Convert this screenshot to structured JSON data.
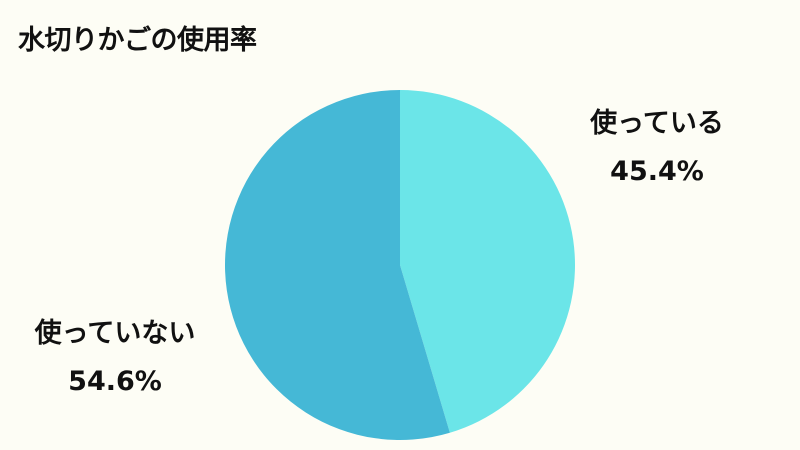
{
  "chart_data": {
    "type": "pie",
    "title": "水切りかごの使用率",
    "slices": [
      {
        "label": "使っている",
        "value": 45.4,
        "value_label": "45.4%",
        "color": "#6be5e8"
      },
      {
        "label": "使っていない",
        "value": 54.6,
        "value_label": "54.6%",
        "color": "#45b8d6"
      }
    ],
    "start_angle": "top",
    "direction": "clockwise",
    "legend": "none"
  },
  "colors": {
    "background": "#fdfdf5",
    "text": "#111111"
  }
}
